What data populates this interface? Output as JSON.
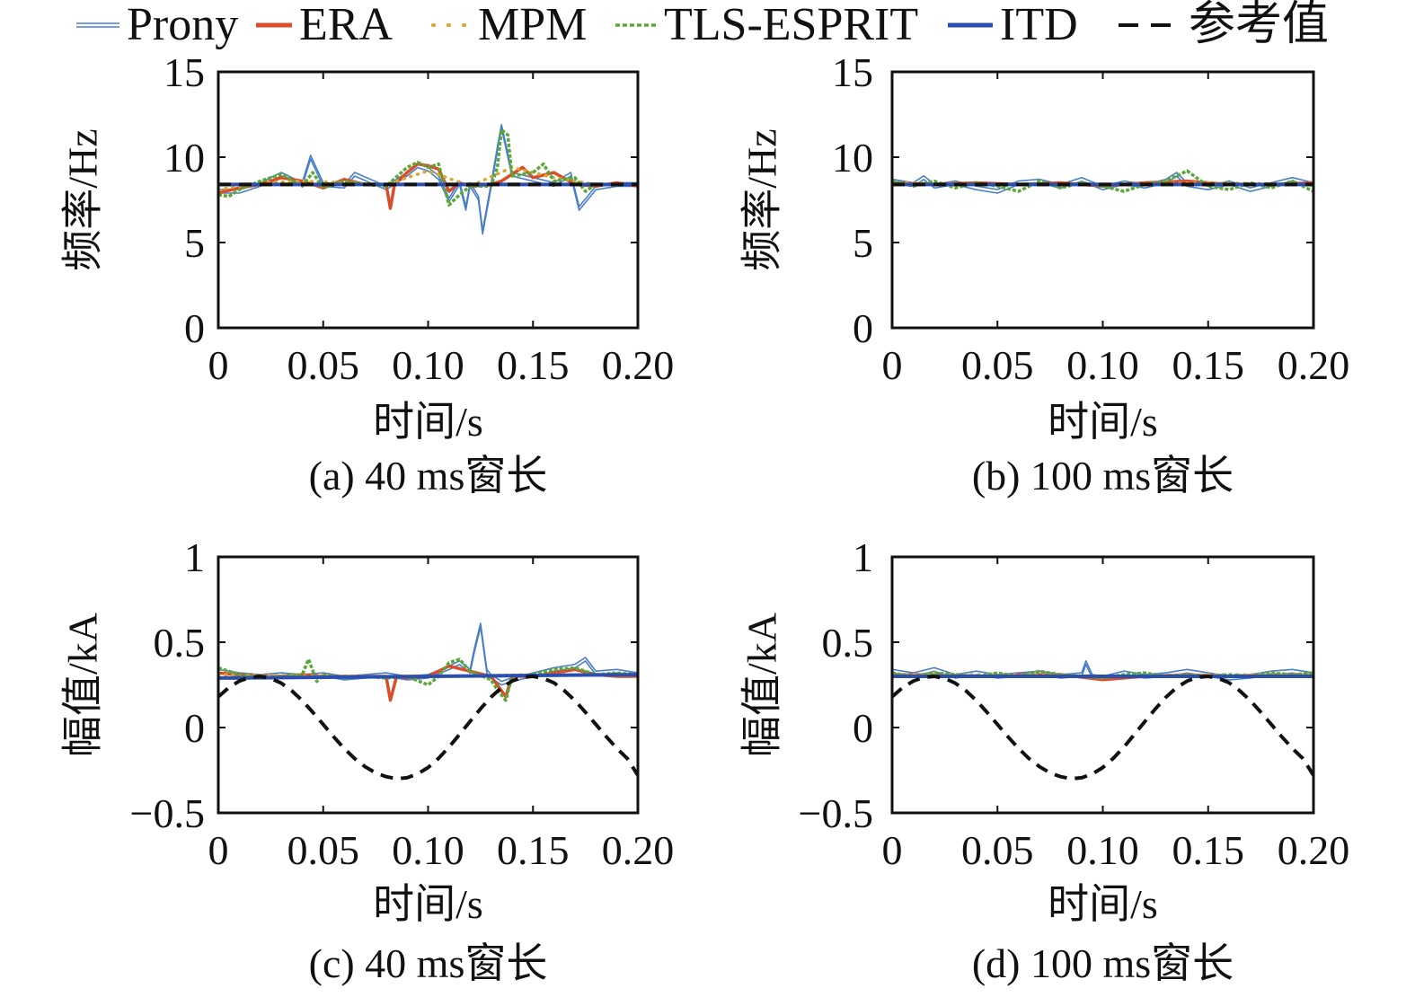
{
  "legend": [
    {
      "name": "Prony",
      "color": "#4a7fc8",
      "dash": "solid",
      "swatch": "thin-double-line"
    },
    {
      "name": "ERA",
      "color": "#d94e2a",
      "dash": "solid",
      "swatch": "thick-line"
    },
    {
      "name": "MPM",
      "color": "#d9a830",
      "dash": "dotted",
      "swatch": "dots"
    },
    {
      "name": "TLS-ESPRIT",
      "color": "#5aa83a",
      "dash": "dashed-fine",
      "swatch": "fine-dash"
    },
    {
      "name": "ITD",
      "color": "#2b4fb0",
      "dash": "solid",
      "swatch": "thick-line"
    },
    {
      "name": "参考值",
      "color": "#111111",
      "dash": "dashed",
      "swatch": "dashed-line"
    }
  ],
  "chart_data": [
    {
      "type": "line",
      "caption": "(a) 40 ms窗长",
      "xlabel": "时间/s",
      "ylabel": "频率/Hz",
      "xlim": [
        0,
        0.2
      ],
      "ylim": [
        0,
        15
      ],
      "x_ticks": [
        "0",
        "0.05",
        "0.10",
        "0.15",
        "0.20"
      ],
      "y_ticks": [
        "0",
        "5",
        "10",
        "15"
      ],
      "grid": false,
      "series": [
        {
          "name": "Prony",
          "x": [
            0,
            0.01,
            0.02,
            0.03,
            0.04,
            0.044,
            0.05,
            0.06,
            0.065,
            0.08,
            0.09,
            0.095,
            0.1,
            0.105,
            0.11,
            0.115,
            0.118,
            0.12,
            0.124,
            0.126,
            0.13,
            0.133,
            0.135,
            0.14,
            0.15,
            0.16,
            0.168,
            0.172,
            0.18,
            0.19,
            0.2
          ],
          "y": [
            8.0,
            8.0,
            8.4,
            9.0,
            8.4,
            10.0,
            8.4,
            8.3,
            9.0,
            8.2,
            9.0,
            9.5,
            9.3,
            8.8,
            7.5,
            8.5,
            7.0,
            8.4,
            7.6,
            5.6,
            8.3,
            10.5,
            11.8,
            9.0,
            8.7,
            8.4,
            9.0,
            7.0,
            8.2,
            8.4,
            8.4
          ]
        },
        {
          "name": "ERA",
          "x": [
            0,
            0.01,
            0.02,
            0.03,
            0.04,
            0.05,
            0.06,
            0.07,
            0.08,
            0.082,
            0.084,
            0.09,
            0.095,
            0.1,
            0.105,
            0.11,
            0.115,
            0.12,
            0.13,
            0.135,
            0.14,
            0.145,
            0.15,
            0.16,
            0.17,
            0.18,
            0.19,
            0.2
          ],
          "y": [
            7.9,
            8.2,
            8.4,
            8.8,
            8.6,
            8.2,
            8.7,
            8.4,
            8.4,
            7.0,
            8.4,
            9.1,
            9.6,
            9.5,
            9.3,
            8.0,
            8.5,
            8.3,
            8.4,
            8.6,
            9.0,
            9.4,
            8.8,
            9.1,
            8.4,
            8.3,
            8.5,
            8.3
          ]
        },
        {
          "name": "MPM",
          "x": [
            0,
            0.02,
            0.04,
            0.06,
            0.08,
            0.1,
            0.12,
            0.14,
            0.16,
            0.18,
            0.2
          ],
          "y": [
            8.1,
            8.5,
            8.6,
            8.5,
            8.4,
            9.2,
            8.3,
            9.4,
            8.8,
            8.4,
            8.4
          ]
        },
        {
          "name": "TLS-ESPRIT",
          "x": [
            0,
            0.005,
            0.01,
            0.02,
            0.03,
            0.04,
            0.045,
            0.05,
            0.06,
            0.07,
            0.08,
            0.09,
            0.095,
            0.1,
            0.105,
            0.11,
            0.115,
            0.12,
            0.13,
            0.133,
            0.135,
            0.138,
            0.14,
            0.15,
            0.155,
            0.16,
            0.17,
            0.175,
            0.18,
            0.19,
            0.2
          ],
          "y": [
            7.8,
            7.7,
            8.1,
            8.6,
            9.0,
            8.3,
            9.1,
            8.2,
            8.6,
            8.4,
            8.3,
            9.4,
            9.7,
            9.4,
            9.6,
            7.2,
            7.8,
            8.3,
            8.3,
            9.4,
            11.6,
            11.3,
            8.9,
            9.1,
            9.6,
            8.6,
            8.8,
            8.0,
            8.4,
            8.4,
            8.4
          ]
        },
        {
          "name": "ITD",
          "x": [
            0,
            0.05,
            0.1,
            0.15,
            0.2
          ],
          "y": [
            8.4,
            8.4,
            8.4,
            8.4,
            8.4
          ]
        },
        {
          "name": "参考值",
          "x": [
            0,
            0.2
          ],
          "y": [
            8.4,
            8.4
          ]
        }
      ]
    },
    {
      "type": "line",
      "caption": "(b) 100 ms窗长",
      "xlabel": "时间/s",
      "ylabel": "频率/Hz",
      "xlim": [
        0,
        0.2
      ],
      "ylim": [
        0,
        15
      ],
      "x_ticks": [
        "0",
        "0.05",
        "0.10",
        "0.15",
        "0.20"
      ],
      "y_ticks": [
        "0",
        "5",
        "10",
        "15"
      ],
      "grid": false,
      "series": [
        {
          "name": "Prony",
          "x": [
            0,
            0.01,
            0.015,
            0.02,
            0.03,
            0.04,
            0.05,
            0.06,
            0.07,
            0.08,
            0.09,
            0.1,
            0.11,
            0.12,
            0.13,
            0.135,
            0.14,
            0.15,
            0.16,
            0.17,
            0.18,
            0.19,
            0.2
          ],
          "y": [
            8.6,
            8.4,
            8.8,
            8.3,
            8.5,
            8.2,
            8.0,
            8.5,
            8.6,
            8.3,
            8.7,
            8.2,
            8.5,
            8.3,
            8.6,
            9.0,
            8.4,
            8.2,
            8.5,
            8.1,
            8.4,
            8.7,
            8.4
          ]
        },
        {
          "name": "ERA",
          "x": [
            0,
            0.02,
            0.04,
            0.06,
            0.08,
            0.1,
            0.12,
            0.14,
            0.16,
            0.18,
            0.2
          ],
          "y": [
            8.5,
            8.4,
            8.5,
            8.4,
            8.5,
            8.3,
            8.5,
            8.6,
            8.4,
            8.4,
            8.5
          ]
        },
        {
          "name": "MPM",
          "x": [
            0,
            0.05,
            0.1,
            0.15,
            0.2
          ],
          "y": [
            8.5,
            8.4,
            8.4,
            8.5,
            8.4
          ]
        },
        {
          "name": "TLS-ESPRIT",
          "x": [
            0,
            0.01,
            0.02,
            0.03,
            0.04,
            0.05,
            0.06,
            0.07,
            0.08,
            0.09,
            0.1,
            0.11,
            0.12,
            0.13,
            0.14,
            0.15,
            0.16,
            0.17,
            0.18,
            0.19,
            0.2
          ],
          "y": [
            8.6,
            8.3,
            8.6,
            8.2,
            8.5,
            8.3,
            8.0,
            8.6,
            8.2,
            8.5,
            8.3,
            8.0,
            8.4,
            8.6,
            9.2,
            8.3,
            8.1,
            8.5,
            8.2,
            8.6,
            8.0
          ]
        },
        {
          "name": "ITD",
          "x": [
            0,
            0.05,
            0.1,
            0.15,
            0.2
          ],
          "y": [
            8.4,
            8.4,
            8.4,
            8.4,
            8.4
          ]
        },
        {
          "name": "参考值",
          "x": [
            0,
            0.2
          ],
          "y": [
            8.4,
            8.4
          ]
        }
      ]
    },
    {
      "type": "line",
      "caption": "(c) 40 ms窗长",
      "xlabel": "时间/s",
      "ylabel": "幅值/kA",
      "xlim": [
        0,
        0.2
      ],
      "ylim": [
        -0.5,
        1
      ],
      "x_ticks": [
        "0",
        "0.05",
        "0.10",
        "0.15",
        "0.20"
      ],
      "y_ticks": [
        "−0.5",
        "0",
        "0.5",
        "1"
      ],
      "grid": false,
      "series": [
        {
          "name": "Prony",
          "x": [
            0,
            0.01,
            0.02,
            0.03,
            0.04,
            0.05,
            0.06,
            0.07,
            0.08,
            0.09,
            0.1,
            0.11,
            0.115,
            0.12,
            0.122,
            0.125,
            0.128,
            0.13,
            0.135,
            0.14,
            0.15,
            0.16,
            0.17,
            0.175,
            0.18,
            0.19,
            0.2
          ],
          "y": [
            0.33,
            0.31,
            0.3,
            0.31,
            0.3,
            0.31,
            0.29,
            0.3,
            0.31,
            0.29,
            0.3,
            0.35,
            0.38,
            0.33,
            0.45,
            0.6,
            0.33,
            0.3,
            0.26,
            0.28,
            0.31,
            0.34,
            0.36,
            0.4,
            0.32,
            0.33,
            0.31
          ]
        },
        {
          "name": "ERA",
          "x": [
            0,
            0.01,
            0.02,
            0.03,
            0.04,
            0.05,
            0.06,
            0.07,
            0.075,
            0.08,
            0.082,
            0.085,
            0.09,
            0.1,
            0.11,
            0.12,
            0.13,
            0.133,
            0.137,
            0.14,
            0.15,
            0.16,
            0.17,
            0.18,
            0.19,
            0.2
          ],
          "y": [
            0.32,
            0.31,
            0.3,
            0.3,
            0.31,
            0.3,
            0.3,
            0.3,
            0.3,
            0.3,
            0.16,
            0.3,
            0.29,
            0.3,
            0.36,
            0.33,
            0.3,
            0.25,
            0.18,
            0.3,
            0.3,
            0.32,
            0.34,
            0.31,
            0.3,
            0.3
          ]
        },
        {
          "name": "MPM",
          "x": [
            0,
            0.05,
            0.1,
            0.15,
            0.2
          ],
          "y": [
            0.31,
            0.3,
            0.3,
            0.31,
            0.31
          ]
        },
        {
          "name": "TLS-ESPRIT",
          "x": [
            0,
            0.01,
            0.02,
            0.03,
            0.04,
            0.043,
            0.047,
            0.05,
            0.06,
            0.07,
            0.08,
            0.09,
            0.1,
            0.105,
            0.11,
            0.115,
            0.12,
            0.13,
            0.133,
            0.137,
            0.14,
            0.15,
            0.16,
            0.17,
            0.18,
            0.19,
            0.2
          ],
          "y": [
            0.35,
            0.31,
            0.29,
            0.3,
            0.31,
            0.4,
            0.27,
            0.31,
            0.29,
            0.3,
            0.29,
            0.3,
            0.25,
            0.3,
            0.38,
            0.4,
            0.33,
            0.28,
            0.22,
            0.16,
            0.3,
            0.31,
            0.34,
            0.35,
            0.31,
            0.32,
            0.31
          ]
        },
        {
          "name": "ITD",
          "x": [
            0,
            0.05,
            0.1,
            0.15,
            0.2
          ],
          "y": [
            0.29,
            0.295,
            0.3,
            0.305,
            0.31
          ]
        },
        {
          "name": "参考值",
          "x": [
            0,
            0.005,
            0.01,
            0.015,
            0.02,
            0.025,
            0.03,
            0.035,
            0.04,
            0.045,
            0.05,
            0.055,
            0.06,
            0.065,
            0.07,
            0.075,
            0.08,
            0.085,
            0.09,
            0.095,
            0.1,
            0.105,
            0.11,
            0.115,
            0.12,
            0.125,
            0.13,
            0.135,
            0.14,
            0.145,
            0.15,
            0.155,
            0.16,
            0.165,
            0.17,
            0.175,
            0.18,
            0.185,
            0.19,
            0.195,
            0.2
          ],
          "y": [
            0.18,
            0.234,
            0.272,
            0.294,
            0.3,
            0.288,
            0.26,
            0.216,
            0.158,
            0.09,
            0.018,
            -0.054,
            -0.122,
            -0.182,
            -0.23,
            -0.266,
            -0.288,
            -0.3,
            -0.294,
            -0.272,
            -0.234,
            -0.18,
            -0.114,
            -0.04,
            0.036,
            0.11,
            0.178,
            0.234,
            0.272,
            0.294,
            0.3,
            0.288,
            0.262,
            0.216,
            0.158,
            0.09,
            0.018,
            -0.054,
            -0.122,
            -0.182,
            -0.28
          ]
        }
      ]
    },
    {
      "type": "line",
      "caption": "(d) 100 ms窗长",
      "xlabel": "时间/s",
      "ylabel": "幅值/kA",
      "xlim": [
        0,
        0.2
      ],
      "ylim": [
        -0.5,
        1
      ],
      "x_ticks": [
        "0",
        "0.05",
        "0.10",
        "0.15",
        "0.20"
      ],
      "y_ticks": [
        "−0.5",
        "0",
        "0.5",
        "1"
      ],
      "grid": false,
      "series": [
        {
          "name": "Prony",
          "x": [
            0,
            0.01,
            0.02,
            0.03,
            0.04,
            0.05,
            0.06,
            0.07,
            0.08,
            0.09,
            0.092,
            0.095,
            0.1,
            0.11,
            0.12,
            0.13,
            0.14,
            0.15,
            0.16,
            0.17,
            0.18,
            0.19,
            0.2
          ],
          "y": [
            0.33,
            0.31,
            0.34,
            0.3,
            0.32,
            0.3,
            0.31,
            0.32,
            0.3,
            0.31,
            0.38,
            0.3,
            0.29,
            0.32,
            0.3,
            0.31,
            0.33,
            0.31,
            0.29,
            0.3,
            0.32,
            0.33,
            0.31
          ]
        },
        {
          "name": "ERA",
          "x": [
            0,
            0.02,
            0.04,
            0.06,
            0.08,
            0.1,
            0.12,
            0.14,
            0.16,
            0.18,
            0.2
          ],
          "y": [
            0.31,
            0.31,
            0.3,
            0.31,
            0.31,
            0.28,
            0.3,
            0.31,
            0.3,
            0.31,
            0.31
          ]
        },
        {
          "name": "MPM",
          "x": [
            0,
            0.05,
            0.1,
            0.15,
            0.2
          ],
          "y": [
            0.31,
            0.31,
            0.3,
            0.31,
            0.31
          ]
        },
        {
          "name": "TLS-ESPRIT",
          "x": [
            0,
            0.01,
            0.02,
            0.03,
            0.04,
            0.05,
            0.06,
            0.07,
            0.08,
            0.09,
            0.1,
            0.11,
            0.12,
            0.13,
            0.14,
            0.15,
            0.16,
            0.17,
            0.18,
            0.19,
            0.2
          ],
          "y": [
            0.32,
            0.3,
            0.32,
            0.31,
            0.3,
            0.32,
            0.3,
            0.33,
            0.31,
            0.3,
            0.29,
            0.31,
            0.32,
            0.3,
            0.31,
            0.3,
            0.31,
            0.3,
            0.32,
            0.31,
            0.32
          ]
        },
        {
          "name": "ITD",
          "x": [
            0,
            0.05,
            0.1,
            0.15,
            0.2
          ],
          "y": [
            0.3,
            0.3,
            0.3,
            0.3,
            0.3
          ]
        },
        {
          "name": "参考值",
          "x": [
            0,
            0.005,
            0.01,
            0.015,
            0.02,
            0.025,
            0.03,
            0.035,
            0.04,
            0.045,
            0.05,
            0.055,
            0.06,
            0.065,
            0.07,
            0.075,
            0.08,
            0.085,
            0.09,
            0.095,
            0.1,
            0.105,
            0.11,
            0.115,
            0.12,
            0.125,
            0.13,
            0.135,
            0.14,
            0.145,
            0.15,
            0.155,
            0.16,
            0.165,
            0.17,
            0.175,
            0.18,
            0.185,
            0.19,
            0.195,
            0.2
          ],
          "y": [
            0.18,
            0.234,
            0.272,
            0.294,
            0.3,
            0.288,
            0.26,
            0.216,
            0.158,
            0.09,
            0.018,
            -0.054,
            -0.122,
            -0.182,
            -0.23,
            -0.266,
            -0.288,
            -0.3,
            -0.294,
            -0.272,
            -0.234,
            -0.18,
            -0.114,
            -0.04,
            0.036,
            0.11,
            0.178,
            0.234,
            0.272,
            0.294,
            0.3,
            0.288,
            0.262,
            0.216,
            0.158,
            0.09,
            0.018,
            -0.054,
            -0.122,
            -0.182,
            -0.28
          ]
        }
      ]
    }
  ]
}
